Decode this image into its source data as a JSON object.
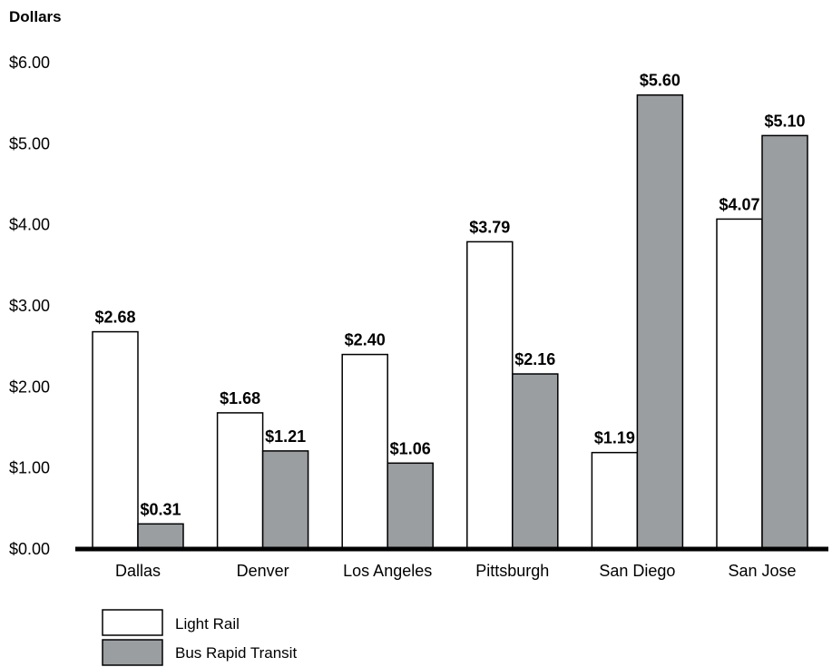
{
  "chart_data": {
    "type": "bar",
    "ylabel": "Dollars",
    "ylim": [
      0,
      6
    ],
    "yticks": [
      "$0.00",
      "$1.00",
      "$2.00",
      "$3.00",
      "$4.00",
      "$5.00",
      "$6.00"
    ],
    "categories": [
      "Dallas",
      "Denver",
      "Los Angeles",
      "Pittsburgh",
      "San Diego",
      "San Jose"
    ],
    "series": [
      {
        "name": "Light Rail",
        "color": "#ffffff",
        "values": [
          2.68,
          1.68,
          2.4,
          3.79,
          1.19,
          4.07
        ],
        "labels": [
          "$2.68",
          "$1.68",
          "$2.40",
          "$3.79",
          "$1.19",
          "$4.07"
        ]
      },
      {
        "name": "Bus Rapid Transit",
        "color": "#9a9ea1",
        "values": [
          0.31,
          1.21,
          1.06,
          2.16,
          5.6,
          5.1
        ],
        "labels": [
          "$0.31",
          "$1.21",
          "$1.06",
          "$2.16",
          "$5.60",
          "$5.10"
        ]
      }
    ],
    "grid": false,
    "legend_position": "bottom-left"
  }
}
